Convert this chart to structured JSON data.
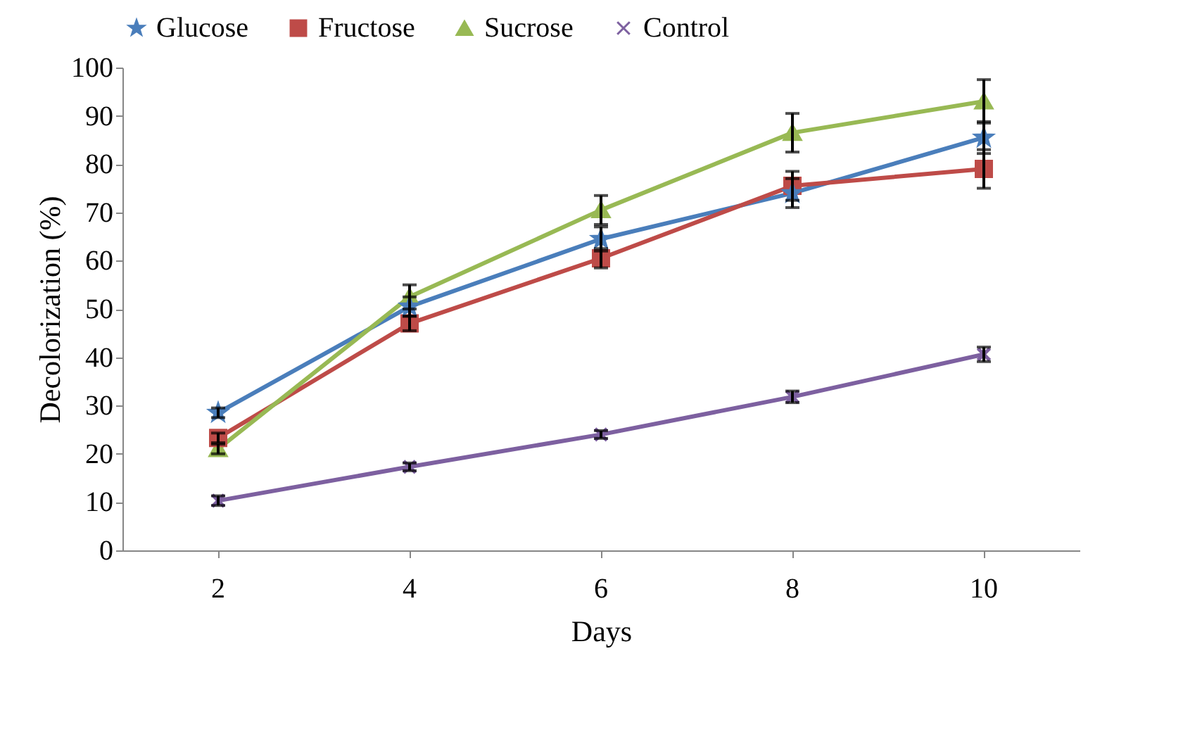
{
  "chart_data": {
    "type": "line",
    "xlabel": "Days",
    "ylabel": "Decolorization (%)",
    "categories": [
      "2",
      "4",
      "6",
      "8",
      "10"
    ],
    "ylim": [
      0,
      100
    ],
    "yticks": [
      0,
      10,
      20,
      30,
      40,
      50,
      60,
      70,
      80,
      90,
      100
    ],
    "grid": false,
    "legend": "top",
    "series": [
      {
        "name": "Glucose",
        "color": "#4a7ebb",
        "marker": "star",
        "values": [
          28.5,
          50.5,
          64.5,
          74,
          85.5
        ],
        "errors": [
          1,
          2,
          2.5,
          3,
          3.3
        ]
      },
      {
        "name": "Fructose",
        "color": "#be4b48",
        "marker": "square",
        "values": [
          23.3,
          47,
          60.5,
          75.5,
          79
        ],
        "errors": [
          1,
          1.5,
          2,
          3,
          4
        ]
      },
      {
        "name": "Sucrose",
        "color": "#98b954",
        "marker": "triangle",
        "values": [
          21,
          52.5,
          70.5,
          86.5,
          93
        ],
        "errors": [
          1,
          2.5,
          3,
          4,
          4.5
        ]
      },
      {
        "name": "Control",
        "color": "#7d60a0",
        "marker": "cross",
        "values": [
          10.3,
          17.3,
          24,
          31.8,
          40.6
        ],
        "errors": [
          1,
          0.8,
          0.8,
          1.2,
          1.5
        ]
      }
    ]
  }
}
